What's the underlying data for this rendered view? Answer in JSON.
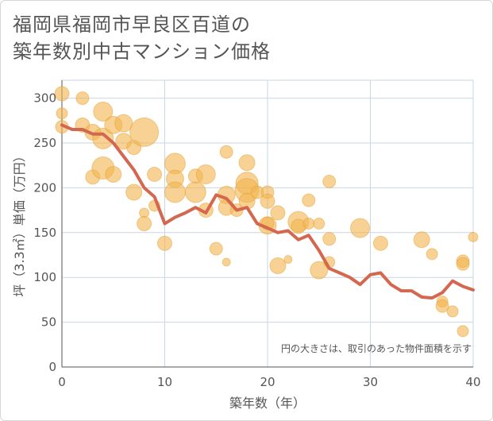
{
  "title_lines": [
    "福岡県福岡市早良区百道の",
    "築年数別中古マンション価格"
  ],
  "colors": {
    "bubble_fill": "#f2b44d",
    "bubble_stroke": "#e6a236",
    "line": "#d4674f",
    "grid": "#c9d6e6",
    "axis_text": "#555555",
    "plot_bg": "#ffffff"
  },
  "chart_data": {
    "type": "scatter",
    "title": "福岡県福岡市早良区百道の築年数別中古マンション価格",
    "xlabel": "築年数（年）",
    "ylabel": "坪（3.3㎡）単価（万円）",
    "xlim": [
      0,
      40
    ],
    "ylim": [
      0,
      320
    ],
    "xticks": [
      0,
      10,
      20,
      30,
      40
    ],
    "yticks": [
      0,
      50,
      100,
      150,
      200,
      250,
      300
    ],
    "grid": true,
    "annotation": "円の大きさは、取引のあった物件面積を示す",
    "series": [
      {
        "kind": "bubble",
        "points": [
          {
            "x": 0,
            "y": 305,
            "s": 9
          },
          {
            "x": 0,
            "y": 283,
            "s": 7
          },
          {
            "x": 0,
            "y": 268,
            "s": 8
          },
          {
            "x": 2,
            "y": 300,
            "s": 8
          },
          {
            "x": 2,
            "y": 270,
            "s": 9
          },
          {
            "x": 3,
            "y": 212,
            "s": 9
          },
          {
            "x": 3,
            "y": 262,
            "s": 10
          },
          {
            "x": 4,
            "y": 285,
            "s": 12
          },
          {
            "x": 4,
            "y": 255,
            "s": 13
          },
          {
            "x": 4,
            "y": 222,
            "s": 14
          },
          {
            "x": 5,
            "y": 270,
            "s": 11
          },
          {
            "x": 5,
            "y": 215,
            "s": 10
          },
          {
            "x": 6,
            "y": 272,
            "s": 11
          },
          {
            "x": 6,
            "y": 252,
            "s": 10
          },
          {
            "x": 7,
            "y": 245,
            "s": 9
          },
          {
            "x": 7,
            "y": 195,
            "s": 10
          },
          {
            "x": 8,
            "y": 262,
            "s": 18
          },
          {
            "x": 8,
            "y": 172,
            "s": 6
          },
          {
            "x": 8,
            "y": 160,
            "s": 9
          },
          {
            "x": 9,
            "y": 215,
            "s": 9
          },
          {
            "x": 9,
            "y": 180,
            "s": 7
          },
          {
            "x": 10,
            "y": 138,
            "s": 9
          },
          {
            "x": 11,
            "y": 227,
            "s": 13
          },
          {
            "x": 11,
            "y": 210,
            "s": 11
          },
          {
            "x": 11,
            "y": 195,
            "s": 13
          },
          {
            "x": 13,
            "y": 213,
            "s": 9
          },
          {
            "x": 13,
            "y": 195,
            "s": 13
          },
          {
            "x": 14,
            "y": 215,
            "s": 12
          },
          {
            "x": 14,
            "y": 175,
            "s": 9
          },
          {
            "x": 15,
            "y": 132,
            "s": 8
          },
          {
            "x": 16,
            "y": 240,
            "s": 8
          },
          {
            "x": 16,
            "y": 192,
            "s": 11
          },
          {
            "x": 16,
            "y": 178,
            "s": 10
          },
          {
            "x": 16,
            "y": 117,
            "s": 5
          },
          {
            "x": 17,
            "y": 175,
            "s": 8
          },
          {
            "x": 18,
            "y": 228,
            "s": 10
          },
          {
            "x": 18,
            "y": 205,
            "s": 14
          },
          {
            "x": 18,
            "y": 197,
            "s": 15
          },
          {
            "x": 18,
            "y": 185,
            "s": 10
          },
          {
            "x": 19,
            "y": 195,
            "s": 8
          },
          {
            "x": 20,
            "y": 195,
            "s": 8
          },
          {
            "x": 20,
            "y": 185,
            "s": 9
          },
          {
            "x": 20,
            "y": 158,
            "s": 11
          },
          {
            "x": 20,
            "y": 160,
            "s": 8
          },
          {
            "x": 21,
            "y": 172,
            "s": 9
          },
          {
            "x": 21,
            "y": 113,
            "s": 10
          },
          {
            "x": 22,
            "y": 120,
            "s": 5
          },
          {
            "x": 23,
            "y": 162,
            "s": 13
          },
          {
            "x": 23,
            "y": 157,
            "s": 9
          },
          {
            "x": 24,
            "y": 186,
            "s": 8
          },
          {
            "x": 24,
            "y": 160,
            "s": 7
          },
          {
            "x": 25,
            "y": 160,
            "s": 7
          },
          {
            "x": 25,
            "y": 108,
            "s": 11
          },
          {
            "x": 26,
            "y": 207,
            "s": 8
          },
          {
            "x": 26,
            "y": 143,
            "s": 8
          },
          {
            "x": 26,
            "y": 117,
            "s": 7
          },
          {
            "x": 29,
            "y": 155,
            "s": 12
          },
          {
            "x": 31,
            "y": 138,
            "s": 9
          },
          {
            "x": 35,
            "y": 142,
            "s": 10
          },
          {
            "x": 36,
            "y": 126,
            "s": 7
          },
          {
            "x": 37,
            "y": 73,
            "s": 7
          },
          {
            "x": 37,
            "y": 68,
            "s": 8
          },
          {
            "x": 38,
            "y": 62,
            "s": 7
          },
          {
            "x": 39,
            "y": 118,
            "s": 8
          },
          {
            "x": 39,
            "y": 115,
            "s": 8
          },
          {
            "x": 39,
            "y": 40,
            "s": 7
          },
          {
            "x": 40,
            "y": 145,
            "s": 6
          }
        ]
      },
      {
        "kind": "line",
        "x": [
          0,
          1,
          2,
          3,
          4,
          5,
          6,
          7,
          8,
          9,
          10,
          11,
          12,
          13,
          14,
          15,
          16,
          17,
          18,
          19,
          20,
          21,
          22,
          23,
          24,
          25,
          26,
          27,
          28,
          29,
          30,
          31,
          32,
          33,
          34,
          35,
          36,
          37,
          38,
          39,
          40
        ],
        "y": [
          270,
          265,
          265,
          260,
          260,
          250,
          235,
          220,
          200,
          190,
          160,
          167,
          172,
          178,
          172,
          192,
          188,
          175,
          178,
          160,
          155,
          150,
          152,
          142,
          147,
          130,
          110,
          105,
          100,
          92,
          103,
          105,
          92,
          85,
          85,
          78,
          77,
          83,
          96,
          90,
          86
        ]
      }
    ]
  }
}
